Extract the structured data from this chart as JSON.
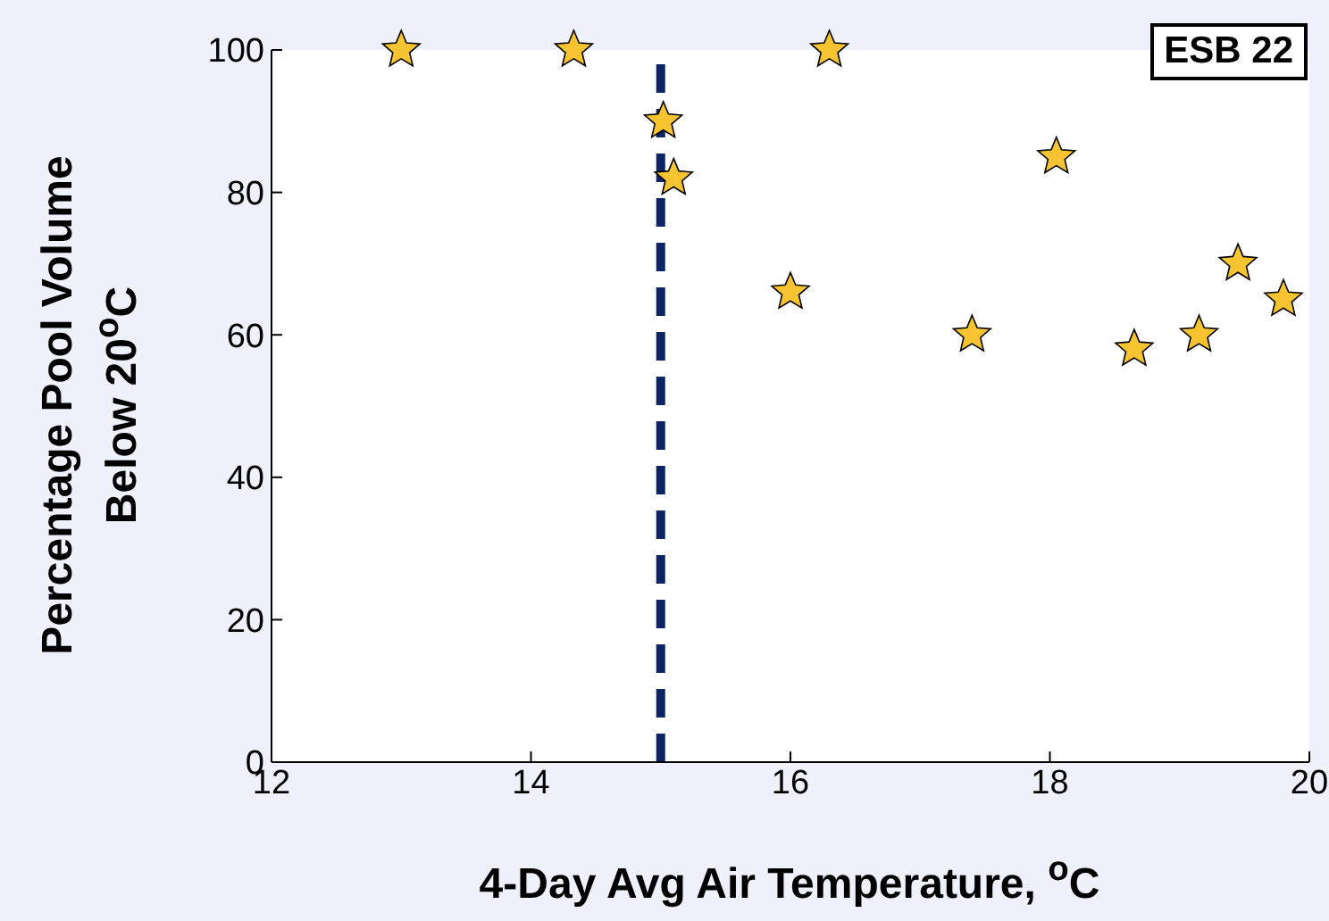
{
  "chart_data": {
    "type": "scatter",
    "xlabel": "4-Day Avg Air Temperature, $^{o}$C",
    "ylabel": "Percentage Pool Volume\nBelow 20$^{o}$C",
    "annotations": [
      "ESB 22"
    ],
    "series": [
      {
        "type": "scatter",
        "color": "#f7c431",
        "x": [
          13.0,
          14.33,
          15.02,
          15.1,
          16.3,
          16.0,
          17.4,
          18.05,
          18.65,
          19.15,
          19.45,
          19.8
        ],
        "values": [
          100,
          100,
          90,
          82,
          100,
          66,
          60,
          85,
          58,
          60,
          70,
          65
        ]
      }
    ],
    "xlim": [
      12,
      20
    ],
    "xticks": [
      12,
      14,
      16,
      18,
      20
    ],
    "ylim": [
      0,
      100
    ],
    "yticks": [
      0,
      20,
      40,
      60,
      80,
      100
    ],
    "ref_lines": [
      {
        "axis": "x",
        "value": 15,
        "color": "#0c2366",
        "line_style": "dashed"
      }
    ],
    "marker": "star",
    "grid": false
  }
}
